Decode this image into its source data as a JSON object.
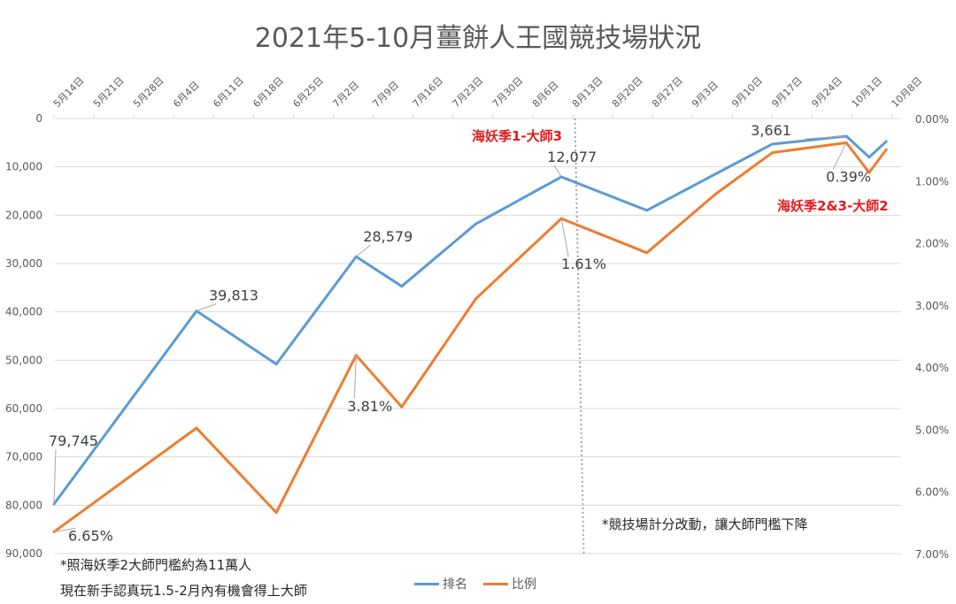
{
  "chart_data": {
    "type": "line",
    "title": "2021年5-10月薑餅人王國競技場狀況",
    "x_tick_labels": [
      "5月14日",
      "5月21日",
      "5月28日",
      "6月4日",
      "6月11日",
      "6月18日",
      "6月25日",
      "7月2日",
      "7月9日",
      "7月16日",
      "7月23日",
      "7月30日",
      "8月6日",
      "8月13日",
      "8月20日",
      "8月27日",
      "9月3日",
      "9月10日",
      "9月17日",
      "9月24日",
      "10月1日",
      "10月8日"
    ],
    "x": [
      "2021-05-14",
      "2021-06-08",
      "2021-06-22",
      "2021-07-06",
      "2021-07-14",
      "2021-07-27",
      "2021-08-11",
      "2021-08-26",
      "2021-09-07",
      "2021-09-17",
      "2021-09-30",
      "2021-10-04",
      "2021-10-07"
    ],
    "y_left": {
      "range": [
        0,
        90000
      ],
      "reversed": true,
      "ticks": [
        "0",
        "10,000",
        "20,000",
        "30,000",
        "40,000",
        "50,000",
        "60,000",
        "70,000",
        "80,000",
        "90,000"
      ]
    },
    "y_right": {
      "range": [
        0,
        7
      ],
      "reversed": true,
      "ticks": [
        "0.00%",
        "1.00%",
        "2.00%",
        "3.00%",
        "4.00%",
        "5.00%",
        "6.00%",
        "7.00%"
      ]
    },
    "grid": true,
    "legend_position": "bottom",
    "series": [
      {
        "name": "排名",
        "axis": "left",
        "color": "#5B9BD5",
        "values": [
          79745,
          39813,
          50800,
          28579,
          34700,
          21800,
          12077,
          19000,
          11500,
          5300,
          3661,
          8000,
          4750
        ]
      },
      {
        "name": "比例",
        "axis": "right",
        "color": "#ED7D31",
        "values": [
          6.65,
          4.98,
          6.34,
          3.81,
          4.64,
          2.9,
          1.61,
          2.16,
          1.22,
          0.55,
          0.39,
          0.87,
          0.5
        ]
      }
    ],
    "data_labels": [
      {
        "series": 0,
        "index": 0,
        "text": "79,745"
      },
      {
        "series": 0,
        "index": 1,
        "text": "39,813"
      },
      {
        "series": 0,
        "index": 3,
        "text": "28,579"
      },
      {
        "series": 0,
        "index": 6,
        "text": "12,077"
      },
      {
        "series": 0,
        "index": 10,
        "text": "3,661"
      },
      {
        "series": 1,
        "index": 0,
        "text": "6.65%"
      },
      {
        "series": 1,
        "index": 3,
        "text": "3.81%"
      },
      {
        "series": 1,
        "index": 6,
        "text": "1.61%"
      },
      {
        "series": 1,
        "index": 10,
        "text": "0.39%"
      }
    ],
    "annotations": {
      "season1": "海妖季1-大師3",
      "season23": "海妖季2&3-大師2",
      "vline_date": "2021-08-14",
      "vline_note": "*競技場計分改動，讓大師門檻下降",
      "note1": "*照海妖季2大師門檻約為11萬人",
      "note2": "現在新手認真玩1.5-2月內有機會得上大師"
    }
  }
}
